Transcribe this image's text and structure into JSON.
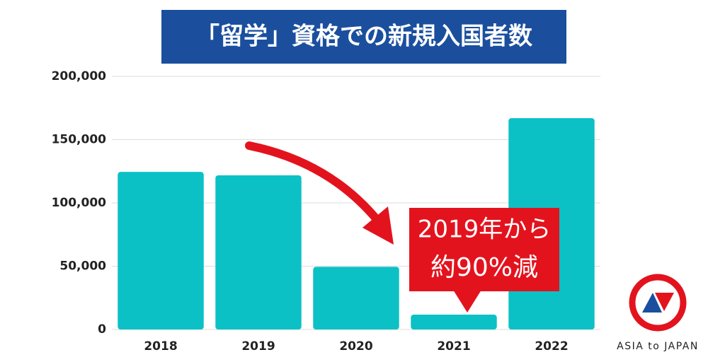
{
  "chart_data": {
    "type": "bar",
    "title": "「留学」資格での新規入国者数",
    "categories": [
      "2018",
      "2019",
      "2020",
      "2021",
      "2022"
    ],
    "values": [
      124500,
      121800,
      49500,
      11700,
      167000
    ],
    "color": "#0bc1c6",
    "ylim": [
      0,
      200000
    ],
    "yticks": [
      0,
      {
        "value": 50000,
        "label": "50,000"
      },
      {
        "value": 100000,
        "label": "100,000"
      },
      {
        "value": 150000,
        "label": "150,000"
      },
      {
        "value": 200000,
        "label": "200,000"
      }
    ],
    "grid": true,
    "annotations": [
      "2019年から",
      "約90%減"
    ],
    "logo": "ASIA to JAPAN"
  }
}
